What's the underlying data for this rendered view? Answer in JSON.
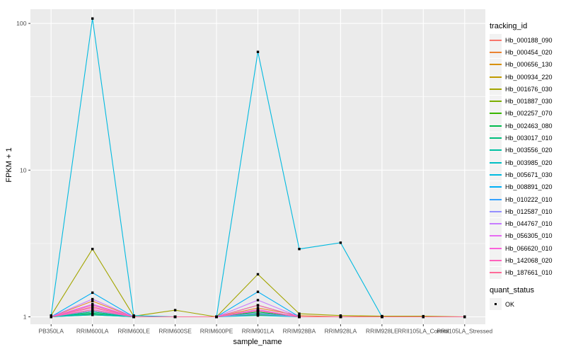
{
  "figure": {
    "background": "#FFFFFF",
    "panel_background": "#EBEBEB",
    "gridline_color": "#FFFFFF",
    "axis_text_color": "#4D4D4D",
    "tick_color": "#333333"
  },
  "chart_data": {
    "type": "line",
    "title": "",
    "xlabel": "sample_name",
    "ylabel": "FPKM + 1",
    "y_scale": "log10",
    "y_ticks": [
      1,
      10,
      100
    ],
    "y_tick_labels": [
      "1",
      "10",
      "100"
    ],
    "y_minor_gridlines": [
      3.162,
      31.62
    ],
    "ylim": [
      0.89,
      124
    ],
    "grid": true,
    "categories": [
      "PB350LA",
      "RRIM600LA",
      "RRIM600LE",
      "RRIM600SE",
      "RRIM600PE",
      "RRIM901LA",
      "RRIM928BA",
      "RRIM928LA",
      "RRIM928LE",
      "RRII105LA_Control",
      "RRII105LA_Stressed"
    ],
    "series": [
      {
        "name": "Hb_000188_090",
        "color": "#F8766D",
        "values": [
          1,
          1.17,
          1,
          1,
          1,
          1.12,
          1,
          1,
          1,
          1,
          1
        ]
      },
      {
        "name": "Hb_000454_020",
        "color": "#EA8331",
        "values": [
          1,
          1.28,
          1,
          1,
          1,
          1.15,
          1.02,
          1,
          1.01,
          1,
          1
        ]
      },
      {
        "name": "Hb_000656_130",
        "color": "#D89000",
        "values": [
          1,
          1.05,
          1,
          1,
          1,
          1.04,
          1,
          1,
          1,
          1,
          1
        ]
      },
      {
        "name": "Hb_000934_220",
        "color": "#C09B00",
        "values": [
          1,
          1.03,
          1,
          1,
          1,
          1.03,
          1,
          1,
          1,
          1,
          1
        ]
      },
      {
        "name": "Hb_001676_030",
        "color": "#A3A500",
        "values": [
          1.02,
          2.9,
          1.01,
          1.11,
          1,
          1.95,
          1.05,
          1.02,
          1.01,
          1.01,
          1
        ]
      },
      {
        "name": "Hb_001887_030",
        "color": "#7CAE00",
        "values": [
          1,
          1.04,
          1,
          1,
          1,
          1.05,
          1,
          1,
          1,
          1,
          1
        ]
      },
      {
        "name": "Hb_002257_070",
        "color": "#39B600",
        "values": [
          1,
          1.1,
          1,
          1,
          1,
          1.2,
          1,
          1,
          1,
          1,
          1
        ]
      },
      {
        "name": "Hb_002463_080",
        "color": "#00BB4E",
        "values": [
          1,
          1.06,
          1,
          1,
          1,
          1.08,
          1,
          1,
          1,
          1,
          1
        ]
      },
      {
        "name": "Hb_003017_010",
        "color": "#00BF7D",
        "values": [
          1,
          1.08,
          1,
          1,
          1,
          1.06,
          1,
          1,
          1,
          1,
          1
        ]
      },
      {
        "name": "Hb_003556_020",
        "color": "#00C1A3",
        "values": [
          1,
          1.05,
          1,
          1,
          1,
          1.04,
          1,
          1,
          1,
          1,
          1
        ]
      },
      {
        "name": "Hb_003985_020",
        "color": "#00BFC4",
        "values": [
          1,
          1.03,
          1,
          1,
          1,
          1.02,
          1,
          1,
          1,
          1,
          1
        ]
      },
      {
        "name": "Hb_005671_030",
        "color": "#00BAE0",
        "values": [
          1.02,
          108,
          1.02,
          1,
          1,
          64,
          2.9,
          3.2,
          1,
          1,
          1
        ]
      },
      {
        "name": "Hb_008891_020",
        "color": "#00B0F6",
        "values": [
          1,
          1.46,
          1,
          1,
          1,
          1.48,
          1,
          1,
          1,
          1,
          1
        ]
      },
      {
        "name": "Hb_010222_010",
        "color": "#35A2FF",
        "values": [
          1,
          1.2,
          1,
          1,
          1,
          1.1,
          1,
          1,
          1,
          1,
          1
        ]
      },
      {
        "name": "Hb_012587_010",
        "color": "#9590FF",
        "values": [
          1,
          1.1,
          1,
          1,
          1,
          1.05,
          1,
          1,
          1,
          1,
          1
        ]
      },
      {
        "name": "Hb_044767_010",
        "color": "#C77CFF",
        "values": [
          1,
          1.32,
          1,
          1,
          1,
          1.3,
          1,
          1,
          1,
          1,
          1
        ]
      },
      {
        "name": "Hb_056305_010",
        "color": "#E76BF3",
        "values": [
          1,
          1.22,
          1,
          1,
          1,
          1.12,
          1,
          1,
          1,
          1,
          1
        ]
      },
      {
        "name": "Hb_066620_010",
        "color": "#FA62DB",
        "values": [
          1,
          1.15,
          1,
          1,
          1,
          1.1,
          1,
          1,
          1,
          1,
          1
        ]
      },
      {
        "name": "Hb_142068_020",
        "color": "#FF62BC",
        "values": [
          1,
          1.2,
          1,
          1,
          1,
          1.2,
          1,
          1,
          1,
          1,
          1
        ]
      },
      {
        "name": "Hb_187661_010",
        "color": "#FF6A98",
        "values": [
          1,
          1.12,
          1,
          1,
          1,
          1.1,
          1,
          1,
          1,
          1,
          1
        ]
      }
    ],
    "points": {
      "shape": "square",
      "color": "#000000",
      "label": "OK"
    },
    "legend": {
      "position": "right",
      "color_title": "tracking_id",
      "shape_title": "quant_status",
      "shape_entries": [
        "OK"
      ]
    }
  }
}
